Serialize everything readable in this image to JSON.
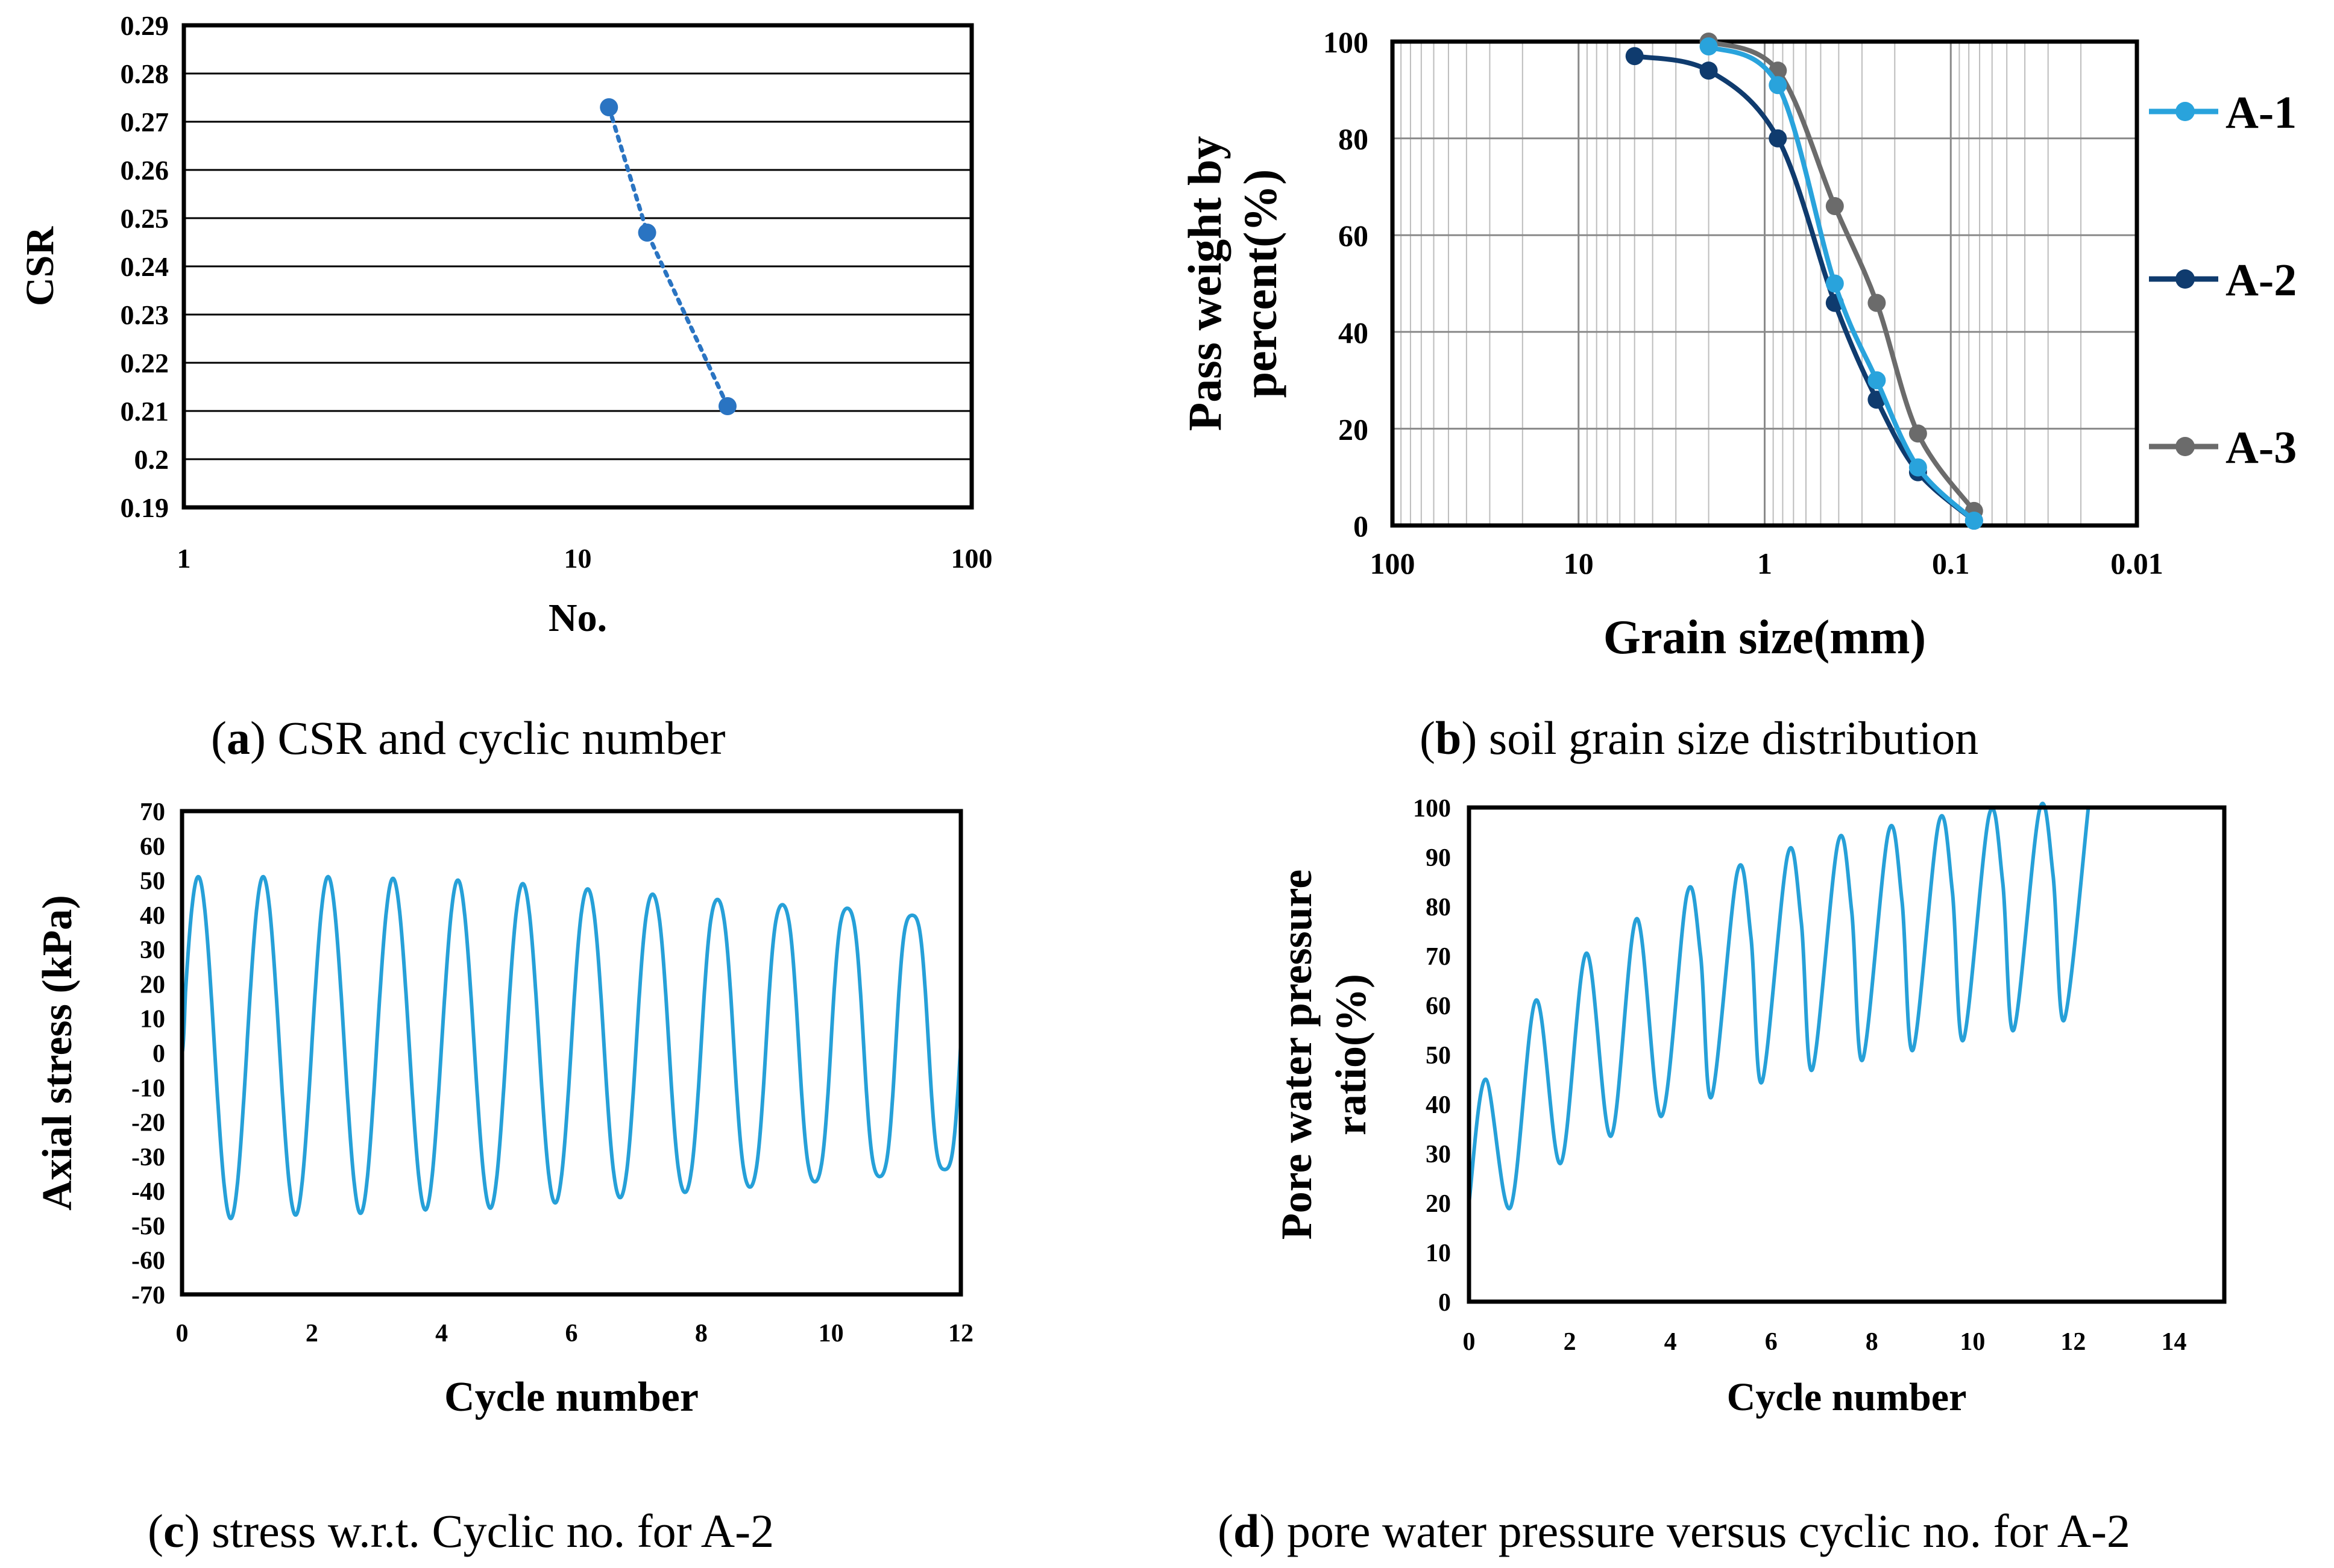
{
  "captions": {
    "a": {
      "letter": "a",
      "text": ") CSR and cyclic number"
    },
    "b": {
      "letter": "b",
      "text": ") soil grain size distribution"
    },
    "c": {
      "letter": "c",
      "text": ") stress w.r.t. Cyclic no. for A-2"
    },
    "d": {
      "letter": "d",
      "text": ") pore water pressure versus cyclic no. for A-2"
    }
  },
  "colors": {
    "A-1": "#29a3dc",
    "A-2": "#0f3b6e",
    "A-3": "#6b6b6b",
    "csr": "#2a74c2",
    "cyclic": "#26a0d8"
  },
  "chart_data": [
    {
      "id": "a",
      "type": "scatter",
      "title": "",
      "xlabel": "No.",
      "ylabel": "CSR",
      "xscale": "log",
      "xlim": [
        1,
        100
      ],
      "ylim": [
        0.19,
        0.29
      ],
      "xticks": [
        1,
        10,
        100
      ],
      "xtick_labels": [
        "1",
        "10",
        "100"
      ],
      "yticks": [
        0.19,
        0.2,
        0.21,
        0.22,
        0.23,
        0.24,
        0.25,
        0.26,
        0.27,
        0.28,
        0.29
      ],
      "ytick_labels": [
        "0.19",
        "0.2",
        "0.21",
        "0.22",
        "0.23",
        "0.24",
        "0.25",
        "0.26",
        "0.27",
        "0.28",
        "0.29"
      ],
      "grid": "horizontal",
      "series": [
        {
          "name": "CSR",
          "x": [
            12,
            15,
            24
          ],
          "y": [
            0.273,
            0.247,
            0.211
          ]
        }
      ]
    },
    {
      "id": "b",
      "type": "line",
      "title": "",
      "xlabel": "Grain size(mm)",
      "ylabel": "Pass weight by percent(%)",
      "ylabel_lines": [
        "Pass weight by",
        "percent(%)"
      ],
      "xscale": "log",
      "xreversed": true,
      "xlim": [
        100,
        0.01
      ],
      "ylim": [
        0,
        100
      ],
      "xticks": [
        100,
        10,
        1,
        0.1,
        0.01
      ],
      "xtick_labels": [
        "100",
        "10",
        "1",
        "0.1",
        "0.01"
      ],
      "yticks": [
        0,
        20,
        40,
        60,
        80,
        100
      ],
      "ytick_labels": [
        "0",
        "20",
        "40",
        "60",
        "80",
        "100"
      ],
      "grid": "both",
      "legend": "right",
      "series": [
        {
          "name": "A-1",
          "x": [
            2,
            0.85,
            0.42,
            0.25,
            0.15,
            0.075
          ],
          "y": [
            99,
            91,
            50,
            30,
            12,
            1
          ]
        },
        {
          "name": "A-2",
          "x": [
            5,
            2,
            0.85,
            0.42,
            0.25,
            0.15,
            0.075
          ],
          "y": [
            97,
            94,
            80,
            46,
            26,
            11,
            1
          ]
        },
        {
          "name": "A-3",
          "x": [
            2,
            0.85,
            0.42,
            0.25,
            0.15,
            0.075
          ],
          "y": [
            100,
            94,
            66,
            46,
            19,
            3
          ]
        }
      ]
    },
    {
      "id": "c",
      "type": "line",
      "title": "",
      "xlabel": "Cycle number",
      "ylabel": "Axial stress (kPa)",
      "xlim": [
        0,
        12
      ],
      "ylim": [
        -70,
        70
      ],
      "xticks": [
        0,
        2,
        4,
        6,
        8,
        10,
        12
      ],
      "xtick_labels": [
        "0",
        "2",
        "4",
        "6",
        "8",
        "10",
        "12"
      ],
      "yticks": [
        -70,
        -60,
        -50,
        -40,
        -30,
        -20,
        -10,
        0,
        10,
        20,
        30,
        40,
        50,
        60,
        70
      ],
      "ytick_labels": [
        "-70",
        "-60",
        "-50",
        "-40",
        "-30",
        "-20",
        "-10",
        "0",
        "10",
        "20",
        "30",
        "40",
        "50",
        "60",
        "70"
      ],
      "grid": "none",
      "series": [
        {
          "name": "A-2 axial stress",
          "cycles": 12,
          "peaks": [
            51,
            51,
            51,
            50.5,
            50,
            49.5,
            48.5,
            47.5,
            46.5,
            45.5,
            45,
            43.5
          ],
          "troughs": [
            -48,
            -47,
            -46.5,
            -45.5,
            -45,
            -44,
            -43,
            -42,
            -41,
            -40,
            -39,
            -37.5
          ]
        }
      ]
    },
    {
      "id": "d",
      "type": "line",
      "title": "",
      "xlabel": "Cycle number",
      "ylabel": "Pore water pressure ratio(%)",
      "ylabel_lines": [
        "Pore  water pressure",
        "ratio(%)"
      ],
      "xlim": [
        0,
        15
      ],
      "ylim": [
        0,
        100
      ],
      "xticks": [
        0,
        2,
        4,
        6,
        8,
        10,
        12,
        14
      ],
      "xtick_labels": [
        "0",
        "2",
        "4",
        "6",
        "8",
        "10",
        "12",
        "14"
      ],
      "yticks": [
        0,
        10,
        20,
        30,
        40,
        50,
        60,
        70,
        80,
        90,
        100
      ],
      "ytick_labels": [
        "0",
        "10",
        "20",
        "30",
        "40",
        "50",
        "60",
        "70",
        "80",
        "90",
        "100"
      ],
      "grid": "none",
      "series": [
        {
          "name": "A-2 pore water pressure ratio",
          "start": 20,
          "end": 100,
          "end_x": 12.3,
          "peaks": [
            45,
            61,
            70.5,
            77.5,
            82.5,
            87,
            90.5,
            93,
            95,
            97,
            98.5,
            99.5
          ],
          "troughs": [
            19,
            28,
            33.5,
            37.5,
            41.5,
            44.5,
            47,
            49,
            51,
            53,
            55,
            57
          ]
        }
      ]
    }
  ]
}
